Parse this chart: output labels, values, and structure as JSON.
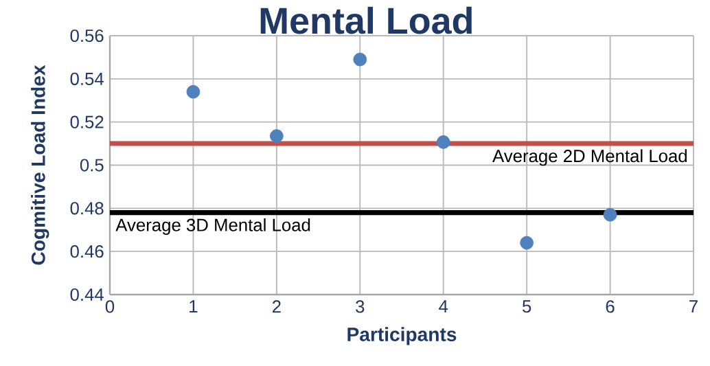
{
  "chart_data": {
    "type": "scatter",
    "title": "Mental Load",
    "xlabel": "Participants",
    "ylabel": "Cogmitive Load Index",
    "x": [
      1,
      2,
      3,
      4,
      5,
      6
    ],
    "series": [
      {
        "values": [
          0.534,
          0.5135,
          0.549,
          0.5107,
          0.464,
          0.477
        ],
        "color": "#4f81bd"
      }
    ],
    "xlim": [
      0,
      7
    ],
    "xticks": [
      0,
      1,
      2,
      3,
      4,
      5,
      6,
      7
    ],
    "ylim": [
      0.44,
      0.56
    ],
    "yticks": [
      0.44,
      0.46,
      0.48,
      0.5,
      0.52,
      0.54,
      0.56
    ],
    "ref_lines": [
      {
        "axis": "y",
        "value": 0.51,
        "label": "Average 2D Mental Load",
        "color": "#c0504d"
      },
      {
        "axis": "y",
        "value": 0.478,
        "label": "Average 3D Mental Load",
        "color": "#000000"
      }
    ],
    "grid": true,
    "marker": "circle"
  }
}
